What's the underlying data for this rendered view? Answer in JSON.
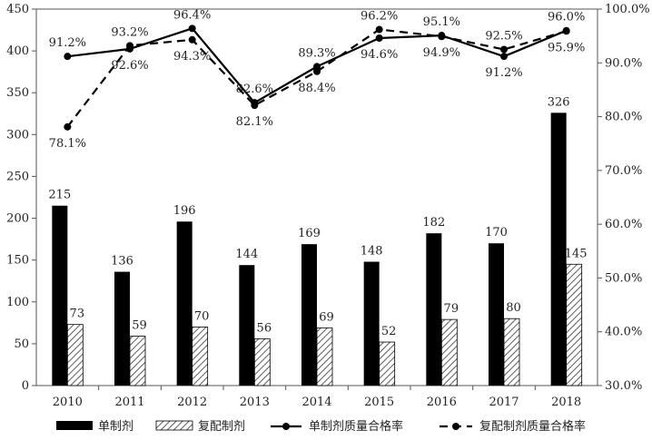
{
  "chart_data": {
    "type": "bar+line",
    "categories": [
      "2010",
      "2011",
      "2012",
      "2013",
      "2014",
      "2015",
      "2016",
      "2017",
      "2018"
    ],
    "bars": [
      {
        "name": "单制剂",
        "values": [
          215,
          136,
          196,
          144,
          169,
          148,
          182,
          170,
          326
        ],
        "labels": [
          "215",
          "136",
          "196",
          "144",
          "169",
          "148",
          "182",
          "170",
          "326"
        ],
        "style": "solid",
        "color": "#000000"
      },
      {
        "name": "复配制剂",
        "values": [
          73,
          59,
          70,
          56,
          69,
          52,
          79,
          80,
          145
        ],
        "labels": [
          "73",
          "59",
          "70",
          "56",
          "69",
          "52",
          "79",
          "80",
          "145"
        ],
        "style": "hatched",
        "color": "#555555"
      }
    ],
    "lines": [
      {
        "name": "单制剂质量合格率",
        "values": [
          91.2,
          92.6,
          96.4,
          82.6,
          89.3,
          94.6,
          95.1,
          91.2,
          96.0
        ],
        "labels": [
          "91.2%",
          "92.6%",
          "96.4%",
          "82.6%",
          "89.3%",
          "94.6%",
          "95.1%",
          "91.2%",
          "96.0%"
        ],
        "dash": "solid",
        "color": "#000000"
      },
      {
        "name": "复配制剂质量合格率",
        "values": [
          78.1,
          93.2,
          94.3,
          82.1,
          88.4,
          96.2,
          94.9,
          92.5,
          95.9
        ],
        "labels": [
          "78.1%",
          "93.2%",
          "94.3%",
          "82.1%",
          "88.4%",
          "96.2%",
          "94.9%",
          "92.5%",
          "95.9%"
        ],
        "dash": "dashed",
        "color": "#000000"
      }
    ],
    "y_left": {
      "min": 0,
      "max": 450,
      "ticks": [
        "0",
        "50",
        "100",
        "150",
        "200",
        "250",
        "300",
        "350",
        "400",
        "450"
      ]
    },
    "y_right": {
      "min": 30,
      "max": 100,
      "ticks": [
        "30.0%",
        "40.0%",
        "50.0%",
        "60.0%",
        "70.0%",
        "80.0%",
        "90.0%",
        "100.0%"
      ]
    },
    "legend": {
      "position": "bottom",
      "items": [
        "单制剂",
        "复配制剂",
        "单制剂质量合格率",
        "复配制剂质量合格率"
      ]
    },
    "grid": false
  }
}
